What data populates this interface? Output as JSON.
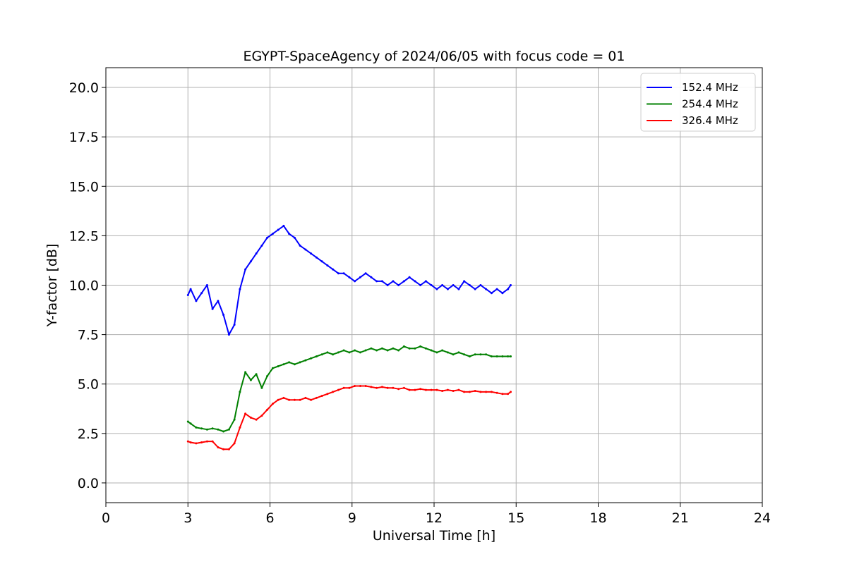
{
  "chart_data": {
    "type": "line",
    "title": "EGYPT-SpaceAgency of 2024/06/05 with focus code = 01",
    "xlabel": "Universal Time [h]",
    "ylabel": "Y-factor [dB]",
    "xlim": [
      0,
      24
    ],
    "ylim": [
      -1.0,
      21.0
    ],
    "xticks": [
      0,
      3,
      6,
      9,
      12,
      15,
      18,
      21,
      24
    ],
    "yticks": [
      0.0,
      2.5,
      5.0,
      7.5,
      10.0,
      12.5,
      15.0,
      17.5,
      20.0
    ],
    "xtick_labels": [
      "0",
      "3",
      "6",
      "9",
      "12",
      "15",
      "18",
      "21",
      "24"
    ],
    "ytick_labels": [
      "0.0",
      "2.5",
      "5.0",
      "7.5",
      "10.0",
      "12.5",
      "15.0",
      "17.5",
      "20.0"
    ],
    "grid": true,
    "legend_position": "top-right",
    "series": [
      {
        "name": "152.4 MHz",
        "color": "#0000ff",
        "x": [
          3.0,
          3.1,
          3.3,
          3.5,
          3.7,
          3.9,
          4.1,
          4.3,
          4.5,
          4.7,
          4.9,
          5.1,
          5.3,
          5.5,
          5.7,
          5.9,
          6.1,
          6.3,
          6.5,
          6.7,
          6.9,
          7.1,
          7.3,
          7.5,
          7.7,
          7.9,
          8.1,
          8.3,
          8.5,
          8.7,
          8.9,
          9.1,
          9.3,
          9.5,
          9.7,
          9.9,
          10.1,
          10.3,
          10.5,
          10.7,
          10.9,
          11.1,
          11.3,
          11.5,
          11.7,
          11.9,
          12.1,
          12.3,
          12.5,
          12.7,
          12.9,
          13.1,
          13.3,
          13.5,
          13.7,
          13.9,
          14.1,
          14.3,
          14.5,
          14.7,
          14.8
        ],
        "y": [
          9.5,
          9.8,
          9.2,
          9.6,
          10.0,
          8.8,
          9.2,
          8.5,
          7.5,
          8.0,
          9.8,
          10.8,
          11.2,
          11.6,
          12.0,
          12.4,
          12.6,
          12.8,
          13.0,
          12.6,
          12.4,
          12.0,
          11.8,
          11.6,
          11.4,
          11.2,
          11.0,
          10.8,
          10.6,
          10.6,
          10.4,
          10.2,
          10.4,
          10.6,
          10.4,
          10.2,
          10.2,
          10.0,
          10.2,
          10.0,
          10.2,
          10.4,
          10.2,
          10.0,
          10.2,
          10.0,
          9.8,
          10.0,
          9.8,
          10.0,
          9.8,
          10.2,
          10.0,
          9.8,
          10.0,
          9.8,
          9.6,
          9.8,
          9.6,
          9.8,
          10.0
        ]
      },
      {
        "name": "254.4 MHz",
        "color": "#008000",
        "x": [
          3.0,
          3.1,
          3.3,
          3.5,
          3.7,
          3.9,
          4.1,
          4.3,
          4.5,
          4.7,
          4.9,
          5.1,
          5.3,
          5.5,
          5.7,
          5.9,
          6.1,
          6.3,
          6.5,
          6.7,
          6.9,
          7.1,
          7.3,
          7.5,
          7.7,
          7.9,
          8.1,
          8.3,
          8.5,
          8.7,
          8.9,
          9.1,
          9.3,
          9.5,
          9.7,
          9.9,
          10.1,
          10.3,
          10.5,
          10.7,
          10.9,
          11.1,
          11.3,
          11.5,
          11.7,
          11.9,
          12.1,
          12.3,
          12.5,
          12.7,
          12.9,
          13.1,
          13.3,
          13.5,
          13.7,
          13.9,
          14.1,
          14.3,
          14.5,
          14.7,
          14.8
        ],
        "y": [
          3.1,
          3.0,
          2.8,
          2.75,
          2.7,
          2.75,
          2.7,
          2.6,
          2.7,
          3.2,
          4.6,
          5.6,
          5.2,
          5.5,
          4.8,
          5.4,
          5.8,
          5.9,
          6.0,
          6.1,
          6.0,
          6.1,
          6.2,
          6.3,
          6.4,
          6.5,
          6.6,
          6.5,
          6.6,
          6.7,
          6.6,
          6.7,
          6.6,
          6.7,
          6.8,
          6.7,
          6.8,
          6.7,
          6.8,
          6.7,
          6.9,
          6.8,
          6.8,
          6.9,
          6.8,
          6.7,
          6.6,
          6.7,
          6.6,
          6.5,
          6.6,
          6.5,
          6.4,
          6.5,
          6.5,
          6.5,
          6.4,
          6.4,
          6.4,
          6.4,
          6.4
        ]
      },
      {
        "name": "326.4 MHz",
        "color": "#ff0000",
        "x": [
          3.0,
          3.1,
          3.3,
          3.5,
          3.7,
          3.9,
          4.1,
          4.3,
          4.5,
          4.7,
          4.9,
          5.1,
          5.3,
          5.5,
          5.7,
          5.9,
          6.1,
          6.3,
          6.5,
          6.7,
          6.9,
          7.1,
          7.3,
          7.5,
          7.7,
          7.9,
          8.1,
          8.3,
          8.5,
          8.7,
          8.9,
          9.1,
          9.3,
          9.5,
          9.7,
          9.9,
          10.1,
          10.3,
          10.5,
          10.7,
          10.9,
          11.1,
          11.3,
          11.5,
          11.7,
          11.9,
          12.1,
          12.3,
          12.5,
          12.7,
          12.9,
          13.1,
          13.3,
          13.5,
          13.7,
          13.9,
          14.1,
          14.3,
          14.5,
          14.7,
          14.8
        ],
        "y": [
          2.1,
          2.05,
          2.0,
          2.05,
          2.1,
          2.1,
          1.8,
          1.7,
          1.7,
          2.0,
          2.8,
          3.5,
          3.3,
          3.2,
          3.4,
          3.7,
          4.0,
          4.2,
          4.3,
          4.2,
          4.2,
          4.2,
          4.3,
          4.2,
          4.3,
          4.4,
          4.5,
          4.6,
          4.7,
          4.8,
          4.8,
          4.9,
          4.9,
          4.9,
          4.85,
          4.8,
          4.85,
          4.8,
          4.8,
          4.75,
          4.8,
          4.7,
          4.7,
          4.75,
          4.7,
          4.7,
          4.7,
          4.65,
          4.7,
          4.65,
          4.7,
          4.6,
          4.6,
          4.65,
          4.6,
          4.6,
          4.6,
          4.55,
          4.5,
          4.5,
          4.6
        ]
      }
    ]
  }
}
